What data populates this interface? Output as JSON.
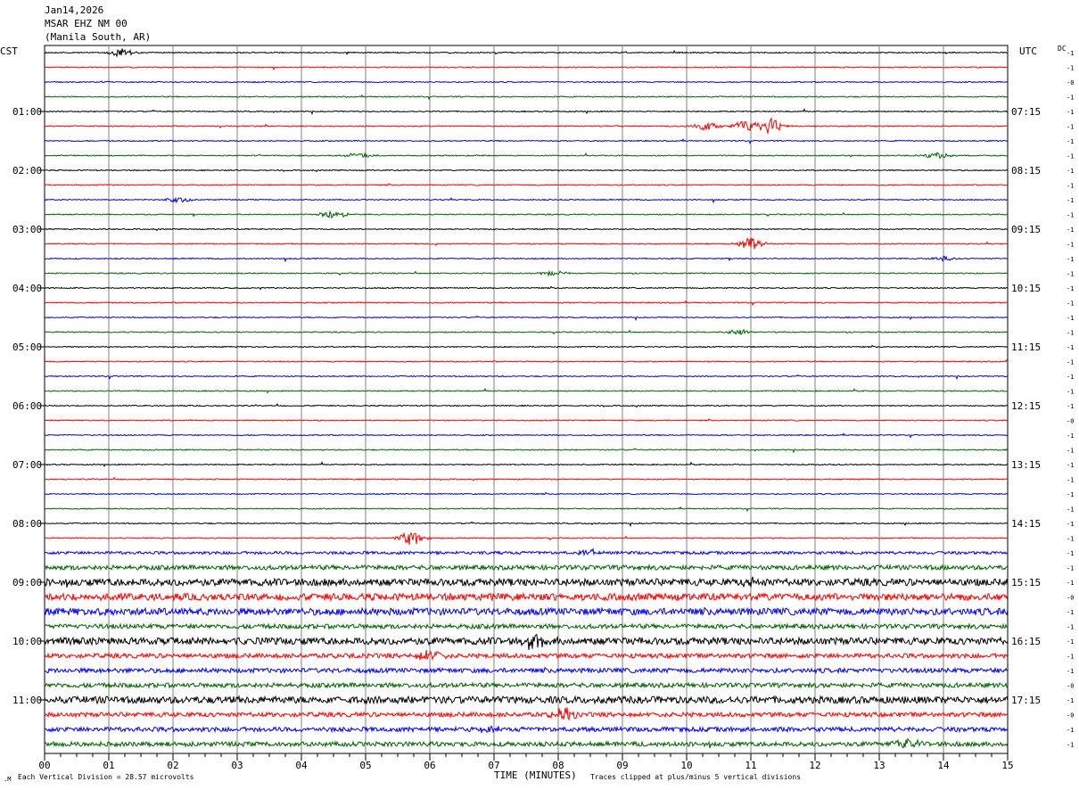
{
  "header": {
    "date": "Jan14,2026",
    "station": "MSAR EHZ NM 00",
    "location": "(Manila South, AR)"
  },
  "left_axis_label": "CST",
  "right_axis_label": "UTC",
  "dc_label": "DC",
  "footer": {
    "scale_note": "Each Vertical Division =   28.57 microvolts",
    "x_title": "TIME (MINUTES)",
    "clip_note": "Traces clipped at plus/minus 5 vertical divisions"
  },
  "colors": {
    "black": "#000000",
    "red": "#ff0000",
    "blue": "#0000ff",
    "green": "#006400",
    "grid": "#808080"
  },
  "chart_data": {
    "type": "line",
    "subtype": "helicorder",
    "x_range": [
      0,
      15
    ],
    "x_ticks": [
      "00",
      "01",
      "02",
      "03",
      "04",
      "05",
      "06",
      "07",
      "08",
      "09",
      "10",
      "11",
      "12",
      "13",
      "14",
      "15"
    ],
    "trace_minutes": 15,
    "trace_count": 48,
    "color_cycle": [
      "black",
      "red",
      "blue",
      "green"
    ],
    "left_hour_labels": [
      {
        "row": 4,
        "label": "01:00"
      },
      {
        "row": 8,
        "label": "02:00"
      },
      {
        "row": 12,
        "label": "03:00"
      },
      {
        "row": 16,
        "label": "04:00"
      },
      {
        "row": 20,
        "label": "05:00"
      },
      {
        "row": 24,
        "label": "06:00"
      },
      {
        "row": 28,
        "label": "07:00"
      },
      {
        "row": 32,
        "label": "08:00"
      },
      {
        "row": 36,
        "label": "09:00"
      },
      {
        "row": 40,
        "label": "10:00"
      },
      {
        "row": 44,
        "label": "11:00"
      }
    ],
    "right_hour_labels": [
      {
        "row": 4,
        "label": "07:15"
      },
      {
        "row": 8,
        "label": "08:15"
      },
      {
        "row": 12,
        "label": "09:15"
      },
      {
        "row": 16,
        "label": "10:15"
      },
      {
        "row": 20,
        "label": "11:15"
      },
      {
        "row": 24,
        "label": "12:15"
      },
      {
        "row": 28,
        "label": "13:15"
      },
      {
        "row": 32,
        "label": "14:15"
      },
      {
        "row": 36,
        "label": "15:15"
      },
      {
        "row": 40,
        "label": "16:15"
      },
      {
        "row": 44,
        "label": "17:15"
      }
    ],
    "dc_offsets": [
      "-1",
      "-1",
      "-0",
      "-1",
      "-1",
      "-1",
      "-1",
      "-1",
      "-1",
      "-1",
      "-1",
      "-1",
      "-1",
      "-1",
      "-1",
      "-1",
      "-1",
      "-1",
      "-1",
      "-1",
      "-1",
      "-1",
      "-1",
      "-1",
      "-1",
      "-0",
      "-1",
      "-1",
      "-1",
      "-1",
      "-1",
      "-1",
      "-1",
      "-1",
      "-1",
      "-1",
      "-1",
      "-0",
      "-1",
      "-1",
      "-1",
      "-1",
      "-1",
      "-0",
      "-1",
      "-0",
      "-1",
      "-1"
    ],
    "noise_level": [
      1,
      1,
      1,
      1,
      1,
      1,
      1,
      1,
      1,
      1,
      1,
      1,
      1,
      1,
      1,
      1,
      1,
      1,
      1,
      1,
      1,
      1,
      1,
      1,
      1,
      1,
      1,
      1,
      1,
      1,
      1,
      1,
      1,
      1,
      2,
      3,
      4,
      4,
      4,
      3,
      4,
      3,
      3,
      3,
      4,
      3,
      3,
      3
    ],
    "events": [
      {
        "row": 0,
        "minute": 1.2,
        "amp": 5
      },
      {
        "row": 5,
        "minute": 10.3,
        "amp": 5
      },
      {
        "row": 5,
        "minute": 10.9,
        "amp": 6
      },
      {
        "row": 5,
        "minute": 11.3,
        "amp": 9
      },
      {
        "row": 7,
        "minute": 4.9,
        "amp": 3
      },
      {
        "row": 7,
        "minute": 13.9,
        "amp": 3
      },
      {
        "row": 10,
        "minute": 2.1,
        "amp": 3
      },
      {
        "row": 11,
        "minute": 4.5,
        "amp": 5
      },
      {
        "row": 13,
        "minute": 11.0,
        "amp": 7
      },
      {
        "row": 14,
        "minute": 14.0,
        "amp": 3
      },
      {
        "row": 15,
        "minute": 7.9,
        "amp": 3
      },
      {
        "row": 19,
        "minute": 10.8,
        "amp": 3
      },
      {
        "row": 33,
        "minute": 5.7,
        "amp": 8
      },
      {
        "row": 34,
        "minute": 8.5,
        "amp": 3
      },
      {
        "row": 36,
        "minute": 11.0,
        "amp": 4
      },
      {
        "row": 40,
        "minute": 7.6,
        "amp": 9
      },
      {
        "row": 41,
        "minute": 6.0,
        "amp": 5
      },
      {
        "row": 45,
        "minute": 8.1,
        "amp": 6
      },
      {
        "row": 46,
        "minute": 6.9,
        "amp": 4
      },
      {
        "row": 47,
        "minute": 13.4,
        "amp": 6
      }
    ]
  }
}
